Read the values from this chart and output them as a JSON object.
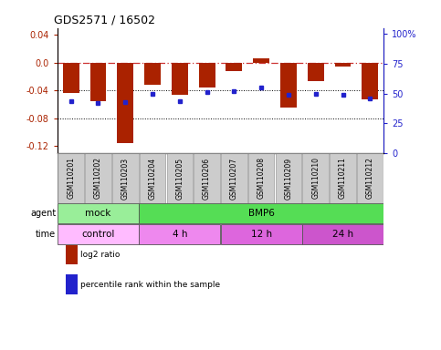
{
  "title": "GDS2571 / 16502",
  "samples": [
    "GSM110201",
    "GSM110202",
    "GSM110203",
    "GSM110204",
    "GSM110205",
    "GSM110206",
    "GSM110207",
    "GSM110208",
    "GSM110209",
    "GSM110210",
    "GSM110211",
    "GSM110212"
  ],
  "log2_ratio": [
    -0.043,
    -0.055,
    -0.115,
    -0.031,
    -0.046,
    -0.035,
    -0.012,
    0.007,
    -0.065,
    -0.027,
    -0.005,
    -0.052
  ],
  "percentile": [
    44,
    42,
    43,
    50,
    44,
    51,
    52,
    55,
    49,
    50,
    49,
    46
  ],
  "bar_color": "#aa2200",
  "dot_color": "#2222cc",
  "ylim_left": [
    -0.13,
    0.05
  ],
  "ylim_right": [
    0,
    105
  ],
  "yticks_left": [
    -0.12,
    -0.08,
    -0.04,
    0.0,
    0.04
  ],
  "yticks_right": [
    0,
    25,
    50,
    75,
    100
  ],
  "ytick_labels_right": [
    "0",
    "25",
    "50",
    "75",
    "100%"
  ],
  "hline_red": 0.0,
  "hlines_dotted": [
    -0.04,
    -0.08
  ],
  "agent_groups": [
    {
      "label": "mock",
      "start": 0,
      "end": 3,
      "color": "#99ee99"
    },
    {
      "label": "BMP6",
      "start": 3,
      "end": 12,
      "color": "#55dd55"
    }
  ],
  "time_groups": [
    {
      "label": "control",
      "start": 0,
      "end": 3,
      "color": "#ffbbff"
    },
    {
      "label": "4 h",
      "start": 3,
      "end": 6,
      "color": "#ee88ee"
    },
    {
      "label": "12 h",
      "start": 6,
      "end": 9,
      "color": "#dd66dd"
    },
    {
      "label": "24 h",
      "start": 9,
      "end": 12,
      "color": "#cc55cc"
    }
  ],
  "legend_items": [
    {
      "label": "log2 ratio",
      "color": "#aa2200"
    },
    {
      "label": "percentile rank within the sample",
      "color": "#2222cc"
    }
  ],
  "agent_label": "agent",
  "time_label": "time",
  "background_color": "#ffffff",
  "plot_bg_color": "#ffffff",
  "tick_label_bg": "#cccccc"
}
